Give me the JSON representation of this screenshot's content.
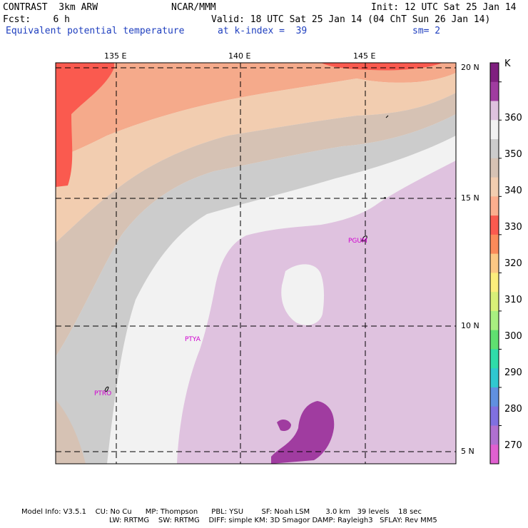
{
  "header": {
    "model": "CONTRAST  3km ARW",
    "center": "NCAR/MMM",
    "init": "Init: 12 UTC Sat 25 Jan 14",
    "fcst": "Fcst:    6 h",
    "valid": "Valid: 18 UTC Sat 25 Jan 14 (04 ChT Sun 26 Jan 14)",
    "field": "Equivalent potential temperature",
    "level": "at k-index =  39",
    "smooth": "sm= 2"
  },
  "axes": {
    "lon_labels": [
      "135 E",
      "140 E",
      "145 E"
    ],
    "lat_labels": [
      "20 N",
      "15 N",
      "10 N",
      "5 N"
    ]
  },
  "colorbar": {
    "unit": "K",
    "labels": [
      "360",
      "350",
      "340",
      "330",
      "320",
      "310",
      "300",
      "290",
      "280",
      "270"
    ],
    "colors": [
      "#7f1f7f",
      "#a03ca0",
      "#dfc2df",
      "#f2f2f2",
      "#cccccc",
      "#d6c2b4",
      "#f2cdb0",
      "#fcae8e",
      "#fa5a4f",
      "#fa8a5a",
      "#fcc884",
      "#fcee7c",
      "#d8f078",
      "#a8ef80",
      "#60e070",
      "#30dcaa",
      "#30c8d0",
      "#6090e0",
      "#8070e0",
      "#b070d0",
      "#e060d0"
    ]
  },
  "stations": [
    "PGUM",
    "PTYA",
    "PTRO"
  ],
  "footer": {
    "line1": "Model Info: V3.5.1    CU: No Cu      MP: Thompson      PBL: YSU        SF: Noah LSM       3.0 km   39 levels    18 sec",
    "line2": "LW: RRTMG    SW: RRTMG    DIFF: simple KM: 3D Smagor DAMP: Rayleigh3   SFLAY: Rev MM5"
  }
}
